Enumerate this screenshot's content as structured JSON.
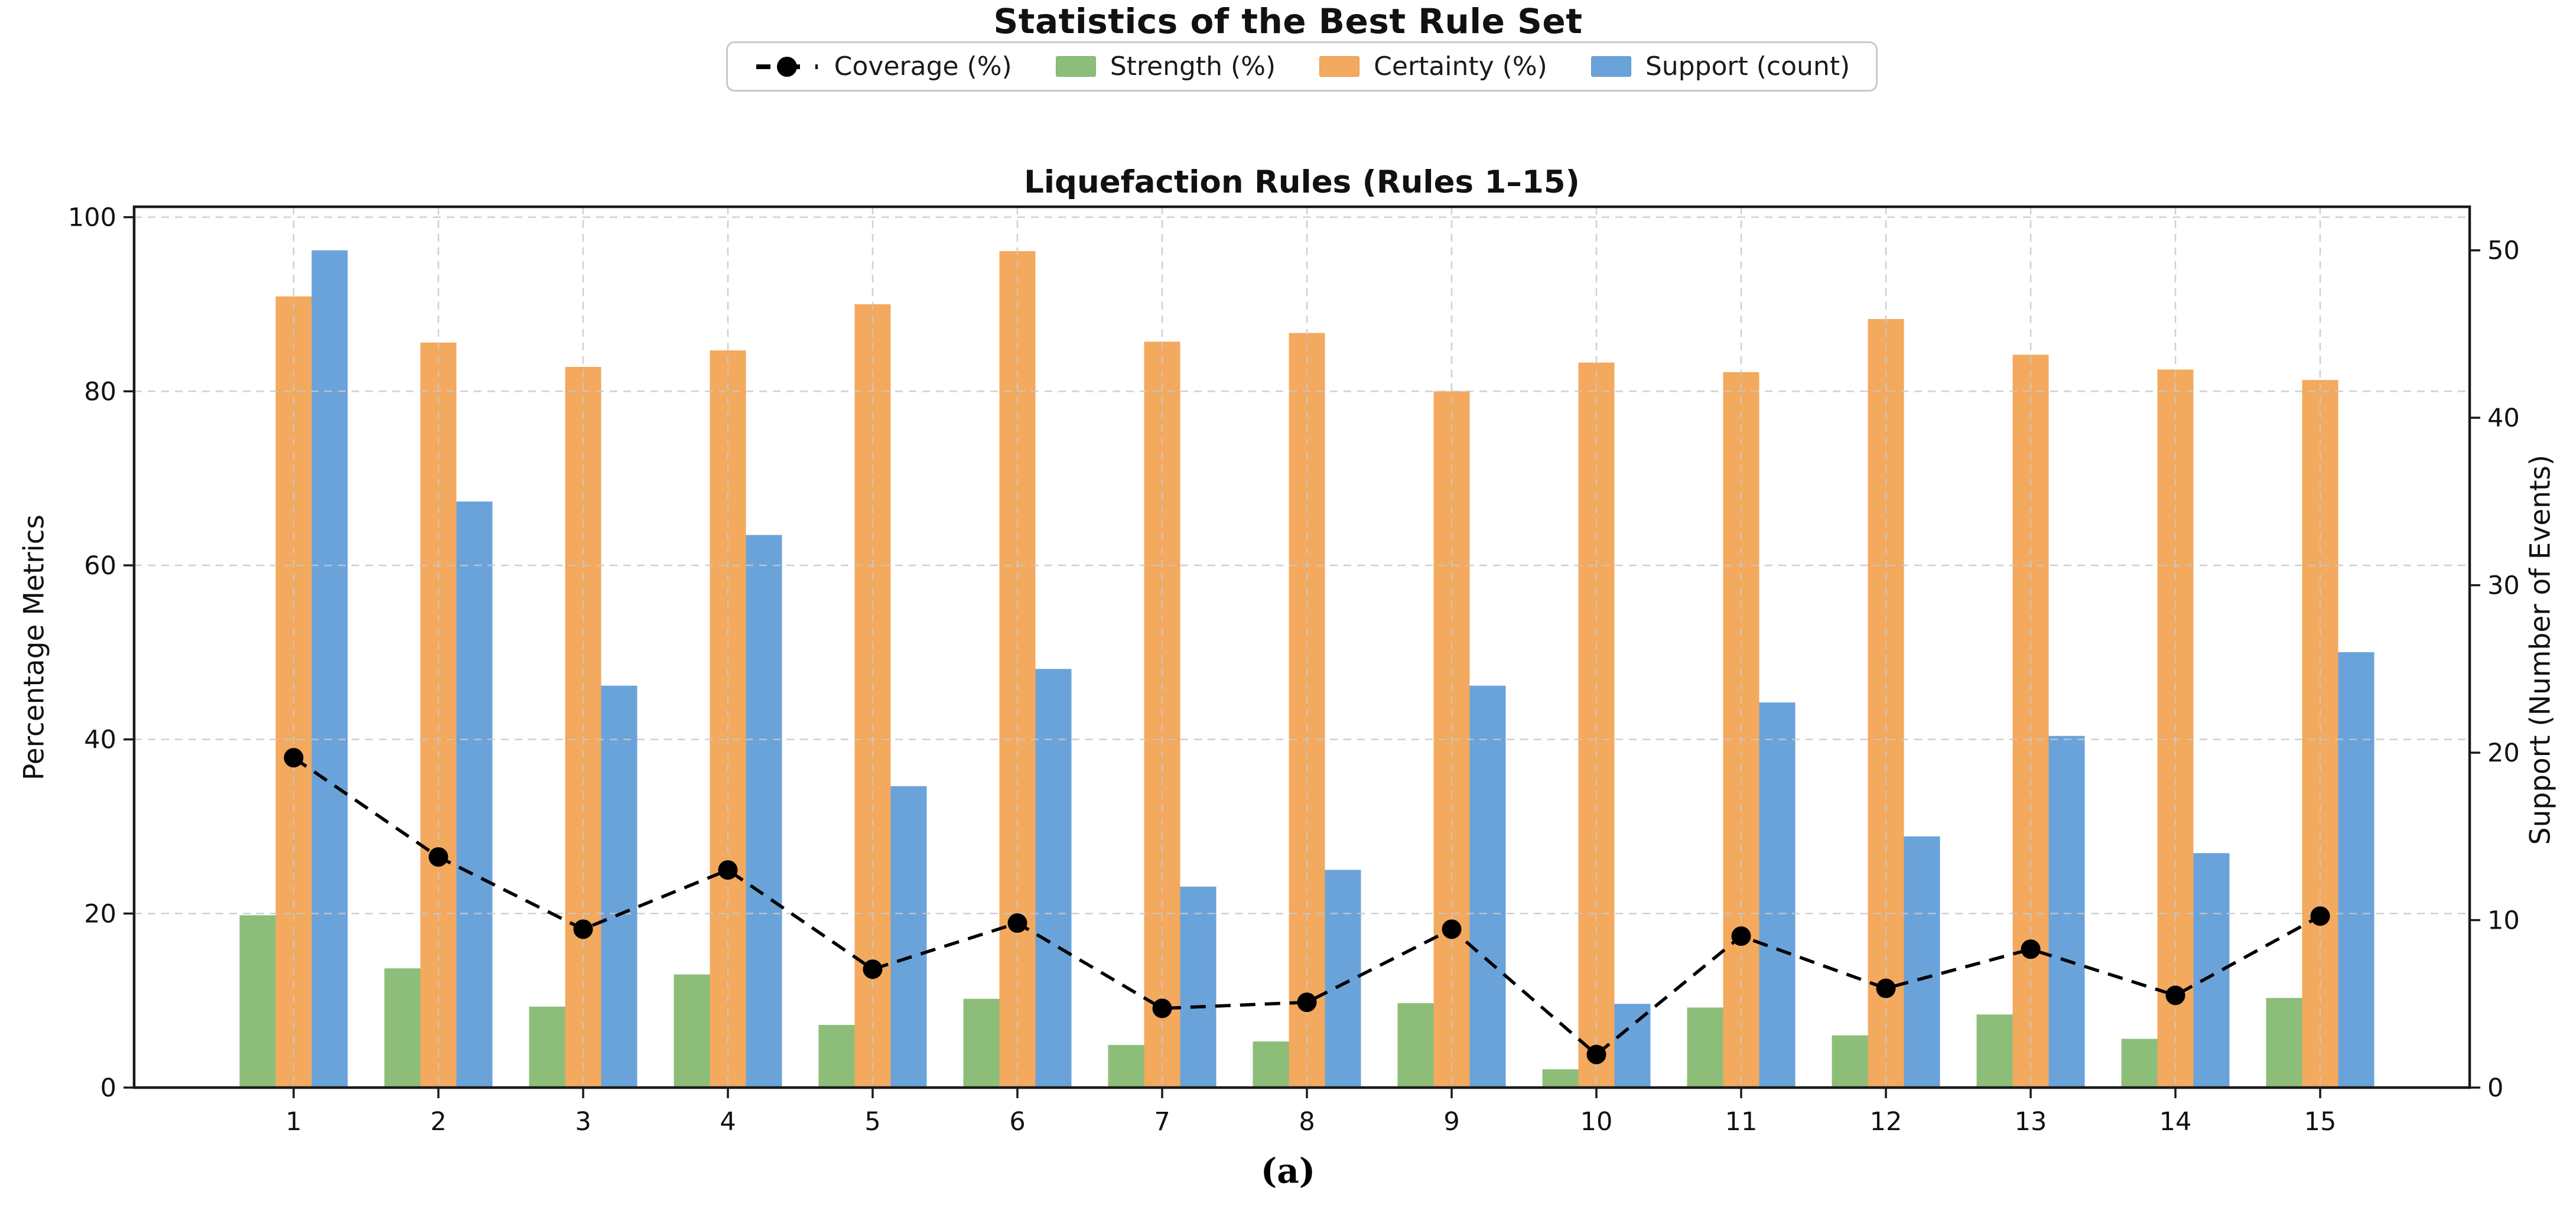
{
  "figure": {
    "title": "Statistics of the Best Rule Set",
    "caption": "(a)"
  },
  "legend": {
    "items": [
      {
        "label": "Coverage (%)",
        "swatch": "dashed-line-marker",
        "color": "#000000"
      },
      {
        "label": "Strength (%)",
        "swatch": "rect",
        "color": "#8dbe79"
      },
      {
        "label": "Certainty (%)",
        "swatch": "rect",
        "color": "#f3a95e"
      },
      {
        "label": "Support (count)",
        "swatch": "rect",
        "color": "#6aa3da"
      }
    ]
  },
  "chart_data": {
    "type": "bar",
    "title": "Liquefaction Rules (Rules 1–15)",
    "categories": [
      "1",
      "2",
      "3",
      "4",
      "5",
      "6",
      "7",
      "8",
      "9",
      "10",
      "11",
      "12",
      "13",
      "14",
      "15"
    ],
    "series": [
      {
        "name": "Coverage (%)",
        "type": "line",
        "axis": "left",
        "color": "#000000",
        "line_style": "dashed",
        "marker": "circle",
        "values": [
          37.9,
          26.5,
          18.2,
          25.0,
          13.6,
          18.9,
          9.1,
          9.8,
          18.2,
          3.8,
          17.4,
          11.4,
          15.9,
          10.6,
          19.7
        ]
      },
      {
        "name": "Strength (%)",
        "type": "bar",
        "axis": "left",
        "color": "#8dbe79",
        "values": [
          19.8,
          13.7,
          9.3,
          13.0,
          7.2,
          10.2,
          4.9,
          5.3,
          9.7,
          2.1,
          9.2,
          6.0,
          8.4,
          5.6,
          10.3
        ]
      },
      {
        "name": "Certainty (%)",
        "type": "bar",
        "axis": "left",
        "color": "#f3a95e",
        "values": [
          90.9,
          85.6,
          82.8,
          84.7,
          90.0,
          96.1,
          85.7,
          86.7,
          80.0,
          83.3,
          82.2,
          88.3,
          84.2,
          82.5,
          81.3
        ]
      },
      {
        "name": "Support (count)",
        "type": "bar",
        "axis": "right",
        "color": "#6aa3da",
        "values": [
          50,
          35,
          24,
          33,
          18,
          25,
          12,
          13,
          24,
          5,
          23,
          15,
          21,
          14,
          26
        ]
      }
    ],
    "left_axis": {
      "label": "Percentage Metrics",
      "ticks": [
        0,
        20,
        40,
        60,
        80,
        100
      ],
      "range": [
        0,
        101.2
      ]
    },
    "right_axis": {
      "label": "Support (Number of Events)",
      "ticks": [
        0,
        10,
        20,
        30,
        40,
        50
      ],
      "range": [
        0,
        52.6
      ]
    },
    "x_axis": {
      "tick_labels": [
        "1",
        "2",
        "3",
        "4",
        "5",
        "6",
        "7",
        "8",
        "9",
        "10",
        "11",
        "12",
        "13",
        "14",
        "15"
      ]
    },
    "grid": {
      "show": true,
      "style": "dashed",
      "color": "#c8c8c8"
    },
    "legend_position": "top"
  }
}
